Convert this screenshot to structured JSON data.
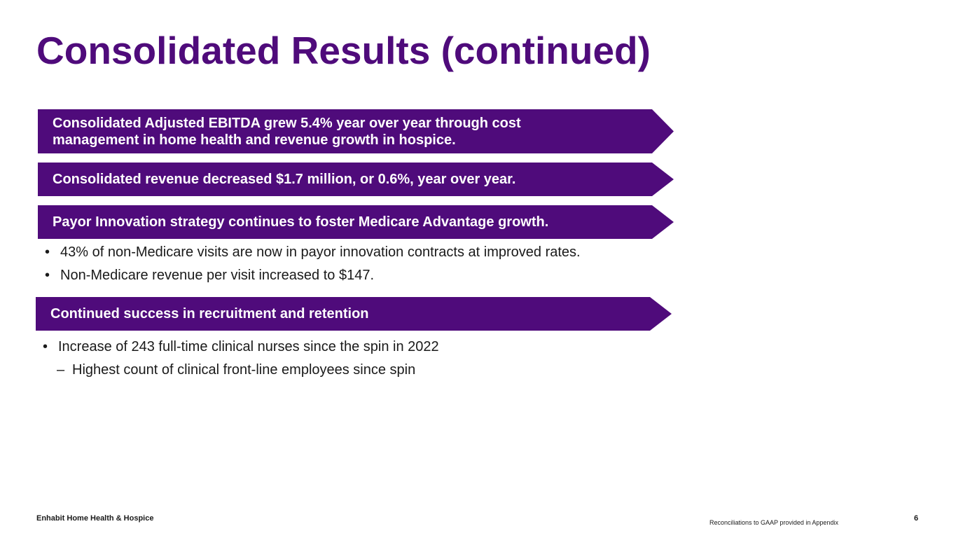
{
  "slide": {
    "title": "Consolidated Results (continued)"
  },
  "banners": [
    {
      "line1": "Consolidated Adjusted EBITDA grew 5.4% year over year through cost",
      "line2": "management in home health and revenue growth in hospice."
    },
    {
      "text": "Consolidated revenue decreased $1.7 million, or 0.6%, year over year."
    },
    {
      "text": "Payor Innovation strategy continues to foster Medicare Advantage growth."
    },
    {
      "text": "Continued success in recruitment and retention"
    }
  ],
  "payor_bullets": [
    "43% of non-Medicare visits are now in payor innovation contracts at improved rates.",
    "Non-Medicare revenue per visit increased to $147."
  ],
  "recruitment_bullets": [
    "Increase of 243 full-time clinical nurses since the spin in 2022"
  ],
  "recruitment_subitem": {
    "dash": "–",
    "text": "Highest count of clinical front-line employees since spin"
  },
  "footer": {
    "company": "Enhabit Home Health & Hospice",
    "note": "Reconciliations to GAAP provided in Appendix",
    "page_number": "6"
  },
  "colors": {
    "brand_purple": "#4f0b7b",
    "text": "#1a1a1a"
  }
}
